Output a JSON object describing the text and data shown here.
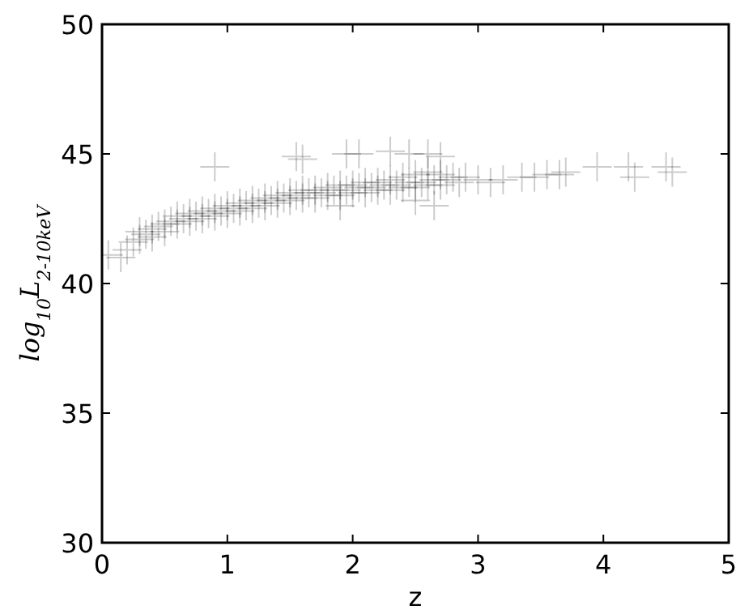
{
  "chart_data": {
    "type": "scatter",
    "xlabel": "z",
    "ylabel": "log$_{10}$L$_{2-10keV}$",
    "xlim": [
      0,
      5
    ],
    "ylim": [
      30,
      50
    ],
    "xticks": [
      0,
      1,
      2,
      3,
      4,
      5
    ],
    "yticks": [
      30,
      35,
      40,
      45,
      50
    ],
    "grid": false,
    "marker": "cross",
    "series": [
      {
        "color": "#000000",
        "x": [
          0.05,
          0.15,
          0.2,
          0.25,
          0.3,
          0.3,
          0.35,
          0.4,
          0.4,
          0.45,
          0.5,
          0.5,
          0.55,
          0.6,
          0.6,
          0.65,
          0.7,
          0.7,
          0.75,
          0.8,
          0.8,
          0.85,
          0.9,
          0.9,
          0.95,
          1.0,
          1.0,
          1.05,
          1.1,
          1.1,
          1.15,
          1.2,
          1.2,
          1.25,
          1.3,
          1.3,
          1.35,
          1.4,
          1.4,
          1.45,
          1.5,
          1.5,
          1.55,
          1.6,
          1.6,
          1.65,
          1.7,
          1.7,
          1.75,
          1.8,
          1.8,
          1.85,
          1.9,
          1.9,
          1.95,
          2.0,
          2.0,
          2.05,
          2.1,
          2.1,
          2.15,
          2.2,
          2.2,
          2.25,
          2.3,
          2.3,
          2.35,
          2.4,
          2.4,
          2.45,
          2.5,
          2.5,
          2.55,
          2.6,
          2.6,
          2.65,
          2.7,
          2.7,
          2.75,
          2.8,
          2.85,
          2.9,
          3.0,
          3.1,
          3.2,
          3.35,
          3.45,
          3.55,
          3.65,
          3.7,
          3.95,
          4.2,
          4.25,
          4.5,
          4.55,
          0.9,
          1.55,
          1.6,
          1.95,
          2.05,
          2.3,
          2.45,
          2.6,
          2.7,
          2.5,
          2.65,
          1.9
        ],
        "values": [
          41.1,
          41.0,
          41.3,
          41.6,
          41.7,
          42.0,
          41.9,
          42.1,
          41.8,
          42.2,
          42.3,
          42.0,
          42.4,
          42.3,
          42.6,
          42.5,
          42.7,
          42.4,
          42.6,
          42.8,
          42.5,
          42.7,
          42.9,
          42.6,
          42.8,
          43.0,
          42.7,
          42.9,
          43.1,
          42.8,
          43.0,
          43.2,
          42.9,
          43.1,
          43.3,
          43.0,
          43.2,
          43.4,
          43.1,
          43.3,
          43.5,
          43.2,
          43.4,
          43.6,
          43.3,
          43.5,
          43.6,
          43.3,
          43.5,
          43.7,
          43.4,
          43.6,
          43.8,
          43.4,
          43.6,
          43.8,
          43.5,
          43.7,
          43.9,
          43.5,
          43.7,
          43.9,
          43.6,
          43.8,
          44.0,
          43.6,
          43.8,
          44.1,
          43.7,
          43.9,
          44.2,
          43.7,
          43.9,
          44.3,
          43.8,
          44.0,
          44.2,
          43.8,
          44.0,
          44.1,
          43.9,
          44.1,
          44.0,
          43.9,
          44.0,
          44.1,
          44.1,
          44.2,
          44.2,
          44.3,
          44.5,
          44.5,
          44.1,
          44.5,
          44.3,
          44.5,
          44.9,
          44.8,
          45.0,
          45.0,
          45.1,
          45.0,
          45.0,
          44.9,
          43.2,
          43.0,
          43.0
        ]
      }
    ]
  }
}
